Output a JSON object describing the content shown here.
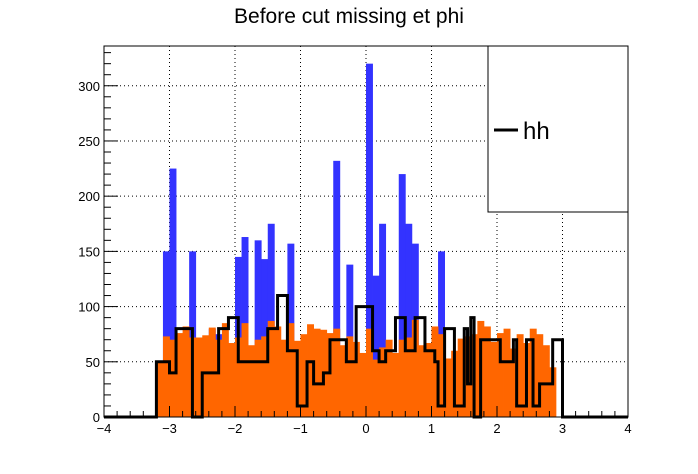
{
  "chart_data": {
    "type": "bar",
    "title": "Before cut missing et phi",
    "xlabel": "",
    "ylabel": "",
    "xlim": [
      -4,
      4
    ],
    "ylim": [
      0,
      336
    ],
    "xticks": [
      -4,
      -3,
      -2,
      -1,
      0,
      1,
      2,
      3,
      4
    ],
    "xtick_labels": [
      "−4",
      "−3",
      "−2",
      "−1",
      "0",
      "1",
      "2",
      "3",
      "4"
    ],
    "yticks": [
      0,
      50,
      100,
      150,
      200,
      250,
      300
    ],
    "ytick_labels": [
      "0",
      "50",
      "100",
      "150",
      "200",
      "250",
      "300"
    ],
    "grid": true,
    "bins": {
      "start": -3.2,
      "width": 0.1,
      "edges_note": "64 bins of width 0.1 from -3.2 to 3.2"
    },
    "series": [
      {
        "role": "stack-top",
        "color": "#3333ff",
        "style": "filled",
        "values": [
          0,
          150,
          225,
          70,
          0,
          150,
          0,
          0,
          80,
          75,
          0,
          0,
          145,
          163,
          0,
          160,
          143,
          175,
          0,
          0,
          157,
          0,
          0,
          0,
          0,
          0,
          0,
          232,
          0,
          138,
          0,
          0,
          320,
          128,
          175,
          0,
          0,
          220,
          175,
          157,
          0,
          0,
          0,
          150,
          0,
          0,
          0,
          0,
          0,
          0,
          0,
          0,
          0,
          0,
          0,
          0,
          0,
          0,
          0,
          0,
          0,
          0,
          0,
          0
        ]
      },
      {
        "role": "stack-bottom",
        "color": "#ff6600",
        "style": "filled",
        "values": [
          50,
          73,
          70,
          76,
          82,
          72,
          72,
          74,
          81,
          70,
          85,
          67,
          72,
          85,
          65,
          70,
          73,
          87,
          82,
          70,
          85,
          69,
          75,
          84,
          80,
          79,
          76,
          80,
          65,
          73,
          68,
          58,
          80,
          52,
          63,
          70,
          58,
          70,
          72,
          88,
          65,
          67,
          82,
          75,
          53,
          60,
          71,
          73,
          75,
          87,
          82,
          68,
          76,
          80,
          62,
          75,
          67,
          80,
          75,
          0,
          0,
          0,
          0,
          0
        ],
        "extra_bins": [
          {
            "bin_index": 59,
            "value": 65
          },
          {
            "bin_index": 60,
            "value": 45
          }
        ]
      },
      {
        "name": "hh",
        "color": "#000000",
        "style": "step",
        "values": [
          50,
          50,
          40,
          80,
          80,
          0,
          0,
          40,
          80,
          90,
          70,
          50,
          50,
          50,
          80,
          110,
          60,
          10,
          60,
          30,
          40,
          40,
          70,
          70,
          50,
          100,
          100,
          60,
          60,
          50,
          60,
          90,
          70,
          70,
          70,
          0,
          70,
          70,
          60,
          60,
          50,
          10,
          80,
          10,
          30,
          30,
          70,
          0,
          30,
          80,
          0,
          0,
          0,
          0,
          0,
          0,
          0,
          0,
          0,
          0,
          0,
          0,
          0,
          0
        ],
        "x_start": -2.2,
        "steps": [
          [
            -3.2,
            50
          ],
          [
            -3.0,
            40
          ],
          [
            -2.9,
            80
          ],
          [
            -2.65,
            0
          ],
          [
            -2.5,
            40
          ],
          [
            -2.25,
            80
          ],
          [
            -2.1,
            90
          ],
          [
            -1.95,
            50
          ],
          [
            -1.5,
            80
          ],
          [
            -1.35,
            110
          ],
          [
            -1.2,
            60
          ],
          [
            -1.05,
            10
          ],
          [
            -0.9,
            50
          ],
          [
            -0.8,
            30
          ],
          [
            -0.65,
            40
          ],
          [
            -0.55,
            70
          ],
          [
            -0.3,
            50
          ],
          [
            -0.15,
            100
          ],
          [
            0.1,
            60
          ],
          [
            0.2,
            50
          ],
          [
            0.3,
            60
          ],
          [
            0.45,
            90
          ],
          [
            0.6,
            60
          ],
          [
            0.75,
            90
          ],
          [
            0.9,
            60
          ],
          [
            1.05,
            50
          ],
          [
            1.1,
            10
          ],
          [
            1.2,
            80
          ],
          [
            1.35,
            10
          ],
          [
            1.5,
            80
          ],
          [
            1.55,
            30
          ],
          [
            1.6,
            90
          ],
          [
            1.65,
            0
          ],
          [
            1.75,
            70
          ],
          [
            2.05,
            50
          ],
          [
            2.25,
            70
          ],
          [
            2.3,
            10
          ],
          [
            2.45,
            70
          ],
          [
            2.55,
            10
          ],
          [
            2.65,
            30
          ],
          [
            2.85,
            70
          ],
          [
            3.0,
            0
          ],
          [
            3.15,
            0
          ],
          [
            4.0,
            0
          ]
        ]
      }
    ],
    "legend": {
      "placement": "top-right",
      "entries": [
        {
          "label": "hh",
          "color": "#000000",
          "style": "line"
        }
      ]
    }
  }
}
